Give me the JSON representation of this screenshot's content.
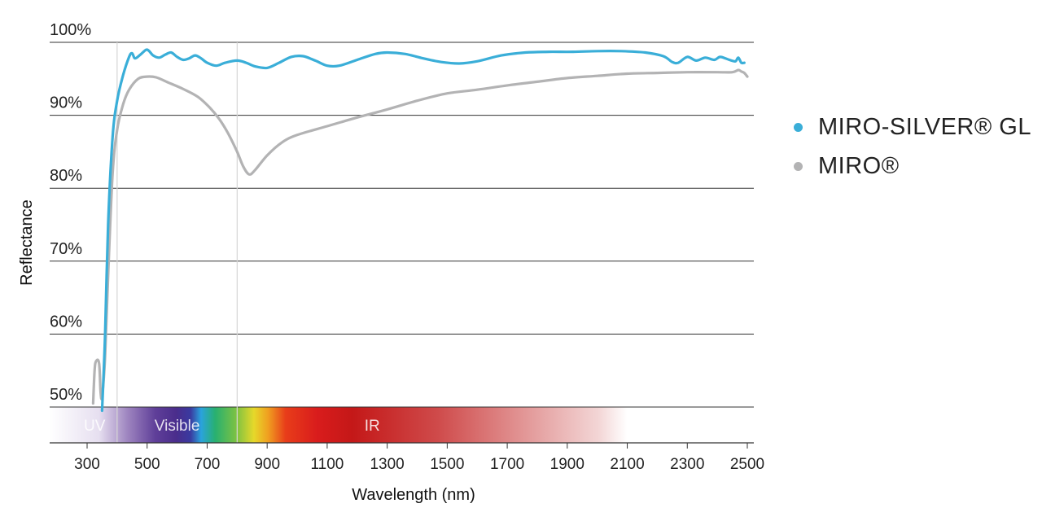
{
  "chart_data": {
    "type": "line",
    "xlabel": "Wavelength (nm)",
    "ylabel": "Reflectance",
    "xlim": [
      300,
      2500
    ],
    "ylim": [
      50,
      100
    ],
    "x_ticks": [
      "300",
      "500",
      "700",
      "900",
      "1100",
      "1300",
      "1500",
      "1700",
      "1900",
      "2100",
      "2300",
      "2500"
    ],
    "y_ticks": [
      "50%",
      "60%",
      "70%",
      "80%",
      "90%",
      "100%"
    ],
    "reference_lines_x": [
      400,
      800
    ],
    "bands": [
      {
        "label": "UV",
        "from": 250,
        "to": 400
      },
      {
        "label": "Visible",
        "from": 400,
        "to": 800
      },
      {
        "label": "IR",
        "from": 800,
        "to": 1700
      }
    ],
    "series": [
      {
        "name": "MIRO-SILVER® GL",
        "color": "#3aaed8",
        "points": [
          [
            350,
            49.5
          ],
          [
            360,
            60
          ],
          [
            370,
            75
          ],
          [
            385,
            87
          ],
          [
            400,
            92
          ],
          [
            420,
            95.5
          ],
          [
            440,
            98
          ],
          [
            450,
            98.5
          ],
          [
            460,
            97.8
          ],
          [
            480,
            98.4
          ],
          [
            500,
            99
          ],
          [
            520,
            98.2
          ],
          [
            540,
            97.9
          ],
          [
            560,
            98.3
          ],
          [
            580,
            98.6
          ],
          [
            600,
            98
          ],
          [
            620,
            97.6
          ],
          [
            640,
            97.8
          ],
          [
            660,
            98.2
          ],
          [
            680,
            97.8
          ],
          [
            700,
            97.2
          ],
          [
            730,
            96.8
          ],
          [
            760,
            97.2
          ],
          [
            800,
            97.5
          ],
          [
            830,
            97.2
          ],
          [
            860,
            96.7
          ],
          [
            900,
            96.5
          ],
          [
            940,
            97.2
          ],
          [
            980,
            98
          ],
          [
            1020,
            98.1
          ],
          [
            1060,
            97.5
          ],
          [
            1100,
            96.8
          ],
          [
            1140,
            96.8
          ],
          [
            1200,
            97.6
          ],
          [
            1260,
            98.4
          ],
          [
            1300,
            98.6
          ],
          [
            1360,
            98.4
          ],
          [
            1420,
            97.8
          ],
          [
            1480,
            97.3
          ],
          [
            1540,
            97.1
          ],
          [
            1600,
            97.4
          ],
          [
            1680,
            98.2
          ],
          [
            1760,
            98.6
          ],
          [
            1840,
            98.7
          ],
          [
            1920,
            98.7
          ],
          [
            2000,
            98.8
          ],
          [
            2080,
            98.8
          ],
          [
            2160,
            98.6
          ],
          [
            2220,
            98.1
          ],
          [
            2250,
            97.3
          ],
          [
            2270,
            97.2
          ],
          [
            2300,
            98
          ],
          [
            2330,
            97.5
          ],
          [
            2360,
            97.9
          ],
          [
            2390,
            97.6
          ],
          [
            2410,
            98
          ],
          [
            2440,
            97.6
          ],
          [
            2460,
            97.4
          ],
          [
            2470,
            97.9
          ],
          [
            2480,
            97.2
          ],
          [
            2490,
            97.2
          ]
        ]
      },
      {
        "name": "MIRO®",
        "color": "#b3b3b4",
        "points": [
          [
            320,
            50.5
          ],
          [
            325,
            55
          ],
          [
            330,
            56.3
          ],
          [
            340,
            56
          ],
          [
            345,
            52
          ],
          [
            350,
            51.5
          ],
          [
            360,
            57
          ],
          [
            370,
            68
          ],
          [
            385,
            82
          ],
          [
            400,
            88
          ],
          [
            420,
            91.5
          ],
          [
            440,
            93.5
          ],
          [
            470,
            95
          ],
          [
            500,
            95.3
          ],
          [
            530,
            95.2
          ],
          [
            570,
            94.5
          ],
          [
            620,
            93.6
          ],
          [
            670,
            92.5
          ],
          [
            710,
            91
          ],
          [
            740,
            89.5
          ],
          [
            770,
            87.5
          ],
          [
            800,
            85
          ],
          [
            820,
            83
          ],
          [
            840,
            81.9
          ],
          [
            860,
            82.5
          ],
          [
            900,
            84.5
          ],
          [
            950,
            86.3
          ],
          [
            1000,
            87.3
          ],
          [
            1100,
            88.5
          ],
          [
            1200,
            89.7
          ],
          [
            1300,
            90.8
          ],
          [
            1400,
            92
          ],
          [
            1500,
            93
          ],
          [
            1600,
            93.5
          ],
          [
            1700,
            94.1
          ],
          [
            1800,
            94.6
          ],
          [
            1900,
            95.1
          ],
          [
            2000,
            95.4
          ],
          [
            2100,
            95.7
          ],
          [
            2200,
            95.8
          ],
          [
            2300,
            95.9
          ],
          [
            2400,
            95.9
          ],
          [
            2450,
            95.9
          ],
          [
            2470,
            96.2
          ],
          [
            2480,
            96
          ],
          [
            2490,
            95.8
          ],
          [
            2500,
            95.3
          ]
        ]
      }
    ]
  }
}
